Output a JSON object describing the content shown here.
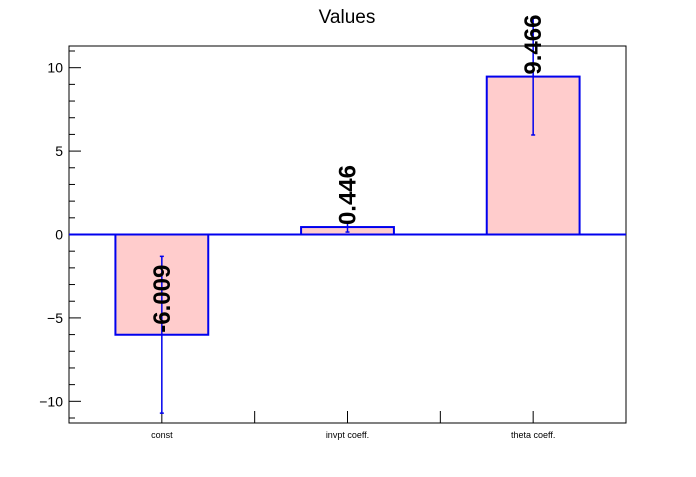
{
  "chart_data": {
    "type": "bar",
    "title": "Values",
    "xlabel": "",
    "ylabel": "",
    "categories": [
      "const",
      "invpt coeff.",
      "theta coeff."
    ],
    "values": [
      -6.009,
      0.446,
      9.466
    ],
    "value_labels": [
      "-6.009",
      "0.446",
      "9.466"
    ],
    "errors": [
      4.7,
      0.3,
      3.5
    ],
    "ylim": [
      -11.3,
      11.3
    ],
    "yticks": [
      -10,
      -5,
      0,
      5,
      10
    ],
    "ytick_labels": [
      "−10",
      "−5",
      "0",
      "5",
      "10"
    ],
    "grid": false,
    "legend": "none",
    "colors": {
      "bar_fill": "#ffcccc",
      "bar_edge": "#0000ee",
      "error_bar": "#0000ee",
      "axis": "#000000",
      "zero_line": "#0000ee"
    }
  }
}
